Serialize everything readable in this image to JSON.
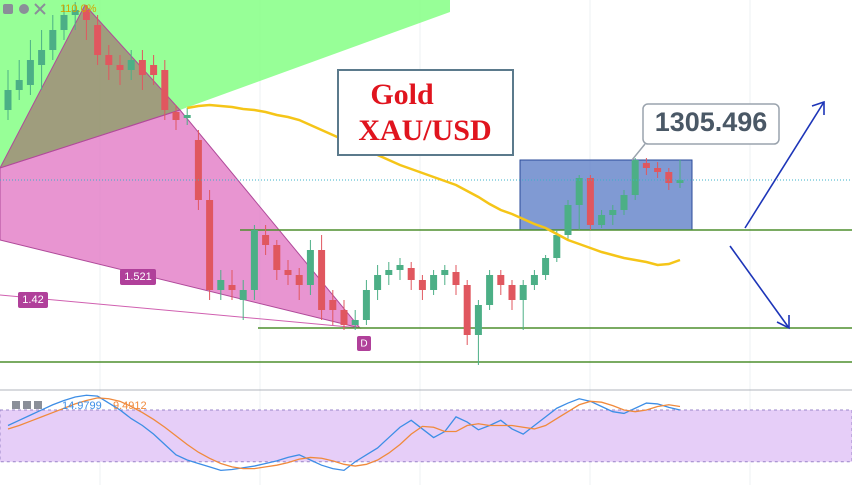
{
  "chart_data": {
    "type": "candlestick",
    "title": "Gold",
    "subtitle": "XAU/USD",
    "price_label": "1305.496",
    "fib_labels": [
      "1.521",
      "1.42",
      "110.0%"
    ],
    "point_label": "D",
    "ylim": [
      1282.5,
      1321.5
    ],
    "up_color": "#4caf86",
    "down_color": "#e0575f",
    "open": [
      1310.5,
      1312.5,
      1313.0,
      1315.0,
      1316.5,
      1318.5,
      1320.0,
      1320.5,
      1319.0,
      1316.0,
      1315.0,
      1314.5,
      1315.5,
      1315.0,
      1314.5,
      1310.3,
      1309.7,
      1307.5,
      1301.5,
      1292.5,
      1293.0,
      1291.5,
      1292.5,
      1298.0,
      1297.0,
      1294.5,
      1294.0,
      1293.0,
      1296.5,
      1291.5,
      1290.5,
      1289.0,
      1289.5,
      1292.5,
      1294.0,
      1294.5,
      1294.7,
      1293.5,
      1292.5,
      1294.0,
      1294.3,
      1293.0,
      1288.0,
      1291.0,
      1294.0,
      1293.0,
      1291.5,
      1293.0,
      1294.0,
      1295.7,
      1298.0,
      1301.0,
      1303.7,
      1299.0,
      1300.0,
      1300.5,
      1302.0,
      1305.2,
      1304.7,
      1304.3,
      1303.2
    ],
    "high": [
      1314.5,
      1315.5,
      1317.5,
      1318.5,
      1320.0,
      1321.0,
      1321.3,
      1321.0,
      1320.0,
      1317.0,
      1316.0,
      1316.5,
      1316.5,
      1316.0,
      1315.5,
      1311.0,
      1310.7,
      1308.5,
      1302.5,
      1294.5,
      1294.5,
      1293.5,
      1299.0,
      1299.0,
      1297.5,
      1295.5,
      1294.7,
      1297.5,
      1298.0,
      1292.5,
      1291.5,
      1290.5,
      1293.5,
      1295.0,
      1295.3,
      1295.7,
      1295.3,
      1294.0,
      1294.5,
      1295.0,
      1295.0,
      1293.5,
      1291.5,
      1294.5,
      1294.5,
      1293.5,
      1293.5,
      1294.5,
      1296.0,
      1298.5,
      1301.5,
      1304.0,
      1304.0,
      1300.5,
      1301.0,
      1302.5,
      1305.7,
      1305.7,
      1305.3,
      1304.7,
      1305.5
    ],
    "low": [
      1309.5,
      1311.5,
      1312.0,
      1312.5,
      1315.5,
      1317.5,
      1318.5,
      1317.5,
      1315.0,
      1313.5,
      1313.0,
      1313.5,
      1312.5,
      1313.0,
      1309.5,
      1308.5,
      1309.0,
      1300.5,
      1291.5,
      1291.5,
      1291.5,
      1289.5,
      1291.5,
      1296.0,
      1293.5,
      1293.0,
      1291.5,
      1292.0,
      1289.5,
      1289.0,
      1288.5,
      1288.5,
      1289.0,
      1291.5,
      1293.0,
      1293.5,
      1292.5,
      1291.5,
      1292.0,
      1293.0,
      1292.0,
      1287.0,
      1285.0,
      1290.5,
      1292.0,
      1290.5,
      1288.5,
      1292.5,
      1293.5,
      1295.3,
      1297.5,
      1298.5,
      1298.5,
      1298.7,
      1299.0,
      1300.0,
      1301.5,
      1304.0,
      1303.7,
      1302.5,
      1302.7
    ],
    "close": [
      1312.5,
      1313.5,
      1315.5,
      1316.5,
      1318.5,
      1320.0,
      1320.5,
      1319.5,
      1316.0,
      1315.0,
      1314.5,
      1315.5,
      1314.0,
      1314.0,
      1310.5,
      1309.5,
      1310.0,
      1301.5,
      1292.5,
      1293.5,
      1292.5,
      1292.5,
      1298.5,
      1297.0,
      1294.5,
      1294.0,
      1293.0,
      1296.5,
      1290.5,
      1290.5,
      1289.0,
      1289.5,
      1292.5,
      1294.0,
      1294.5,
      1295.0,
      1293.5,
      1292.5,
      1294.0,
      1294.5,
      1293.0,
      1288.0,
      1291.0,
      1294.0,
      1293.0,
      1291.5,
      1293.0,
      1294.0,
      1295.7,
      1298.0,
      1301.0,
      1303.7,
      1299.0,
      1300.0,
      1300.5,
      1302.0,
      1305.5,
      1304.7,
      1304.3,
      1303.2,
      1303.5
    ],
    "ma": {
      "color": "#f5c518",
      "values": [
        null,
        null,
        null,
        null,
        null,
        null,
        null,
        null,
        null,
        null,
        null,
        null,
        null,
        null,
        null,
        null,
        1310.7,
        1310.9,
        1311.0,
        1310.9,
        1310.8,
        1310.6,
        1310.5,
        1310.3,
        1310.0,
        1309.8,
        1309.5,
        1309.0,
        1308.5,
        1308.0,
        1307.5,
        1307.0,
        1306.5,
        1306.0,
        1305.5,
        1305.0,
        1304.6,
        1304.2,
        1303.8,
        1303.4,
        1303.0,
        1302.4,
        1301.8,
        1301.1,
        1300.5,
        1300.1,
        1299.6,
        1299.1,
        1298.7,
        1298.1,
        1297.5,
        1297.1,
        1296.7,
        1296.3,
        1296.0,
        1295.7,
        1295.5,
        1295.3,
        1295.0,
        1295.1,
        1295.5
      ]
    },
    "levels": {
      "color": "#4e8f2e",
      "values": [
        1298.5,
        1288.7,
        1285.3
      ]
    },
    "oscillator": {
      "ylim": [
        0,
        100
      ],
      "band": [
        20,
        80
      ],
      "series": [
        {
          "name": "14.9799",
          "color": "#3d8ee6",
          "values": [
            62,
            68,
            74,
            80,
            86,
            91,
            95,
            97,
            96,
            88,
            80,
            70,
            62,
            52,
            40,
            28,
            22,
            18,
            14,
            10,
            11,
            13,
            15,
            18,
            21,
            25,
            28,
            22,
            16,
            12,
            10,
            20,
            28,
            36,
            48,
            60,
            68,
            58,
            48,
            55,
            72,
            66,
            57,
            62,
            68,
            58,
            52,
            62,
            72,
            82,
            88,
            93,
            90,
            84,
            78,
            76,
            82,
            88,
            87,
            83,
            80
          ]
        },
        {
          "name": "9.4912",
          "color": "#f08a3c",
          "values": [
            58,
            62,
            67,
            72,
            77,
            82,
            87,
            91,
            94,
            93,
            90,
            84,
            77,
            69,
            60,
            50,
            40,
            31,
            24,
            18,
            14,
            12,
            12,
            14,
            16,
            19,
            23,
            25,
            24,
            21,
            17,
            15,
            17,
            22,
            30,
            40,
            52,
            61,
            60,
            55,
            55,
            62,
            64,
            62,
            62,
            62,
            60,
            58,
            62,
            70,
            78,
            86,
            90,
            89,
            85,
            80,
            78,
            80,
            84,
            86,
            84
          ]
        }
      ]
    }
  }
}
